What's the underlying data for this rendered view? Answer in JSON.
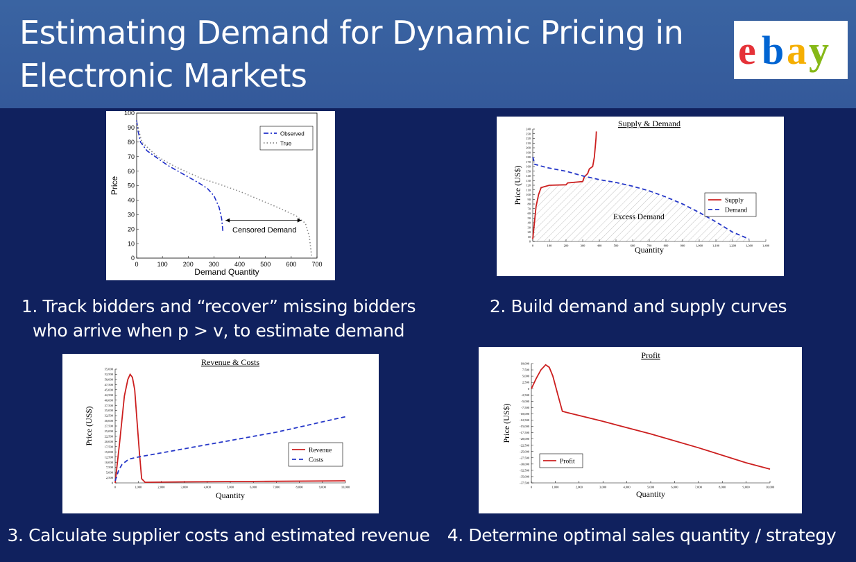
{
  "slide": {
    "title_line1": "Estimating Demand for Dynamic Pricing in",
    "title_line2": "Electronic Markets",
    "logo_text": "ebay",
    "logo_colors": [
      "#e53238",
      "#0064d2",
      "#f5af02",
      "#86b817"
    ]
  },
  "captions": {
    "c1_line1": "1. Track bidders and “recover” missing bidders",
    "c1_line2": "who arrive when p > v, to estimate demand",
    "c2": "2. Build demand and supply curves",
    "c3": "3. Calculate supplier costs and estimated revenue",
    "c4": "4. Determine optimal sales quantity / strategy"
  },
  "chart_data": [
    {
      "type": "line",
      "title": "",
      "xlabel": "Demand Quantity",
      "ylabel": "Price",
      "xlim": [
        0,
        700
      ],
      "ylim": [
        0,
        100
      ],
      "xticks": [
        "0",
        "100",
        "200",
        "300",
        "400",
        "500",
        "600",
        "700"
      ],
      "yticks": [
        "0",
        "10",
        "20",
        "30",
        "40",
        "50",
        "60",
        "70",
        "80",
        "90",
        "100"
      ],
      "legend_position": "top-right",
      "annotation": "Censored Demand",
      "series": [
        {
          "name": "Observed",
          "color": "#1f2ec9",
          "style": "dashdot",
          "points": [
            [
              0,
              95
            ],
            [
              5,
              88
            ],
            [
              15,
              80
            ],
            [
              40,
              74
            ],
            [
              80,
              69
            ],
            [
              120,
              64
            ],
            [
              160,
              60
            ],
            [
              200,
              56
            ],
            [
              240,
              52
            ],
            [
              275,
              48
            ],
            [
              300,
              43
            ],
            [
              320,
              35
            ],
            [
              330,
              27
            ],
            [
              335,
              18
            ]
          ]
        },
        {
          "name": "True",
          "color": "#888888",
          "style": "dotted",
          "points": [
            [
              0,
              94
            ],
            [
              20,
              80
            ],
            [
              80,
              70
            ],
            [
              150,
              63
            ],
            [
              200,
              59
            ],
            [
              250,
              55
            ],
            [
              320,
              51
            ],
            [
              400,
              46
            ],
            [
              480,
              40
            ],
            [
              560,
              34
            ],
            [
              620,
              29
            ],
            [
              655,
              24
            ],
            [
              670,
              15
            ],
            [
              680,
              0
            ]
          ]
        }
      ]
    },
    {
      "type": "line",
      "title": "Supply & Demand",
      "xlabel": "Quantity",
      "ylabel": "Price (US$)",
      "xlim": [
        0,
        1400
      ],
      "ylim": [
        0,
        240
      ],
      "xticks": [
        "0",
        "100",
        "200",
        "300",
        "400",
        "500",
        "600",
        "700",
        "800",
        "900",
        "1,000",
        "1,100",
        "1,200",
        "1,300",
        "1,400"
      ],
      "yticks": [
        "0",
        "10",
        "20",
        "30",
        "40",
        "50",
        "60",
        "70",
        "80",
        "90",
        "100",
        "110",
        "120",
        "130",
        "140",
        "150",
        "160",
        "170",
        "180",
        "190",
        "200",
        "210",
        "220",
        "230",
        "240"
      ],
      "legend_position": "bottom-right",
      "annotation": "Excess Demand",
      "series": [
        {
          "name": "Supply",
          "color": "#cc1f1f",
          "style": "solid",
          "points": [
            [
              0,
              5
            ],
            [
              10,
              40
            ],
            [
              20,
              75
            ],
            [
              35,
              100
            ],
            [
              50,
              115
            ],
            [
              100,
              120
            ],
            [
              200,
              121
            ],
            [
              210,
              125
            ],
            [
              300,
              128
            ],
            [
              310,
              138
            ],
            [
              330,
              145
            ],
            [
              340,
              155
            ],
            [
              360,
              160
            ],
            [
              370,
              180
            ],
            [
              375,
              200
            ],
            [
              380,
              220
            ],
            [
              382,
              235
            ]
          ]
        },
        {
          "name": "Demand",
          "color": "#2436c8",
          "style": "dashed",
          "points": [
            [
              0,
              180
            ],
            [
              5,
              175
            ],
            [
              10,
              165
            ],
            [
              80,
              158
            ],
            [
              200,
              150
            ],
            [
              300,
              140
            ],
            [
              400,
              132
            ],
            [
              500,
              126
            ],
            [
              600,
              118
            ],
            [
              700,
              108
            ],
            [
              800,
              95
            ],
            [
              900,
              80
            ],
            [
              1000,
              62
            ],
            [
              1100,
              42
            ],
            [
              1200,
              20
            ],
            [
              1300,
              5
            ]
          ]
        }
      ]
    },
    {
      "type": "line",
      "title": "Revenue & Costs",
      "xlabel": "Quantity",
      "ylabel": "Price (US$)",
      "xlim": [
        0,
        10000
      ],
      "ylim": [
        0,
        55000
      ],
      "xticks": [
        "0",
        "1,000",
        "2,000",
        "3,000",
        "4,000",
        "5,000",
        "6,000",
        "7,000",
        "8,000",
        "9,000",
        "10,000"
      ],
      "yticks": [
        "0",
        "2,500",
        "5,000",
        "7,500",
        "10,000",
        "12,500",
        "15,000",
        "17,500",
        "20,000",
        "22,500",
        "25,000",
        "27,500",
        "30,000",
        "32,500",
        "35,000",
        "37,500",
        "40,000",
        "42,500",
        "45,000",
        "47,500",
        "50,000",
        "52,500",
        "55,000"
      ],
      "legend_position": "bottom-right",
      "series": [
        {
          "name": "Revenue",
          "color": "#cc1f1f",
          "style": "solid",
          "points": [
            [
              0,
              0
            ],
            [
              200,
              20000
            ],
            [
              400,
              42000
            ],
            [
              550,
              50000
            ],
            [
              650,
              52500
            ],
            [
              750,
              51000
            ],
            [
              850,
              45000
            ],
            [
              950,
              30000
            ],
            [
              1050,
              15000
            ],
            [
              1150,
              2000
            ],
            [
              1300,
              300
            ],
            [
              3000,
              500
            ],
            [
              6000,
              700
            ],
            [
              10000,
              1000
            ]
          ]
        },
        {
          "name": "Costs",
          "color": "#2436c8",
          "style": "dashed",
          "points": [
            [
              0,
              1000
            ],
            [
              150,
              6000
            ],
            [
              300,
              9000
            ],
            [
              600,
              11500
            ],
            [
              1000,
              12500
            ],
            [
              2000,
              14500
            ],
            [
              3000,
              16500
            ],
            [
              4000,
              18500
            ],
            [
              5000,
              20500
            ],
            [
              6000,
              22500
            ],
            [
              7000,
              24500
            ],
            [
              8000,
              27000
            ],
            [
              9000,
              29500
            ],
            [
              10000,
              32000
            ]
          ]
        }
      ]
    },
    {
      "type": "line",
      "title": "Profit",
      "xlabel": "Quantity",
      "ylabel": "Price (US$)",
      "xlim": [
        0,
        10000
      ],
      "ylim": [
        -37500,
        10000
      ],
      "xticks": [
        "0",
        "1,000",
        "2,000",
        "3,000",
        "4,000",
        "5,000",
        "6,000",
        "7,000",
        "8,000",
        "9,000",
        "10,000"
      ],
      "yticks": [
        "-37,500",
        "-35,000",
        "-32,500",
        "-30,000",
        "-27,500",
        "-25,000",
        "-22,500",
        "-20,000",
        "-17,500",
        "-15,000",
        "-12,500",
        "-10,000",
        "-7,500",
        "-5,000",
        "-2,500",
        "0",
        "2,500",
        "5,000",
        "7,500",
        "10,000"
      ],
      "legend_position": "bottom-left",
      "series": [
        {
          "name": "Profit",
          "color": "#cc1f1f",
          "style": "solid",
          "points": [
            [
              0,
              0
            ],
            [
              200,
              4000
            ],
            [
              400,
              7500
            ],
            [
              600,
              9500
            ],
            [
              750,
              8500
            ],
            [
              900,
              5000
            ],
            [
              1100,
              -2000
            ],
            [
              1300,
              -9000
            ],
            [
              1500,
              -9500
            ],
            [
              3000,
              -13000
            ],
            [
              5000,
              -18000
            ],
            [
              7000,
              -23500
            ],
            [
              9000,
              -29500
            ],
            [
              10000,
              -32000
            ]
          ]
        }
      ]
    }
  ]
}
